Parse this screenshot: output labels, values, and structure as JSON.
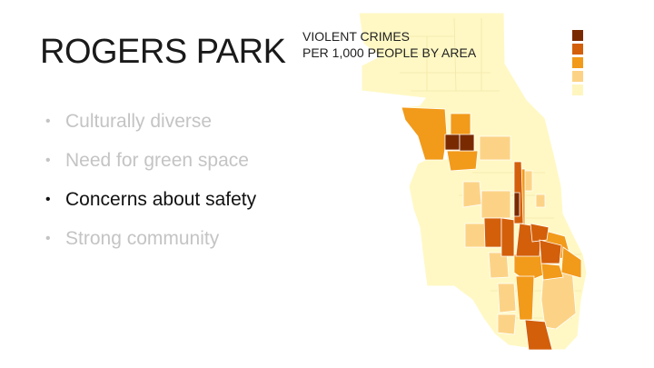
{
  "slide": {
    "title": "ROGERS PARK",
    "bullets": [
      {
        "text": "Culturally diverse",
        "state": "dim"
      },
      {
        "text": "Need for green space",
        "state": "dim"
      },
      {
        "text": "Concerns about safety",
        "state": "active"
      },
      {
        "text": "Strong community",
        "state": "dim"
      }
    ]
  },
  "map": {
    "heading_line1": "VIOLENT CRIMES",
    "heading_line2": "PER 1,000 PEOPLE BY AREA",
    "legend_colors": [
      "#7a2a00",
      "#d35f0a",
      "#f29a1a",
      "#fcd386",
      "#fff6bf"
    ],
    "base_color": "#fff8c4"
  }
}
